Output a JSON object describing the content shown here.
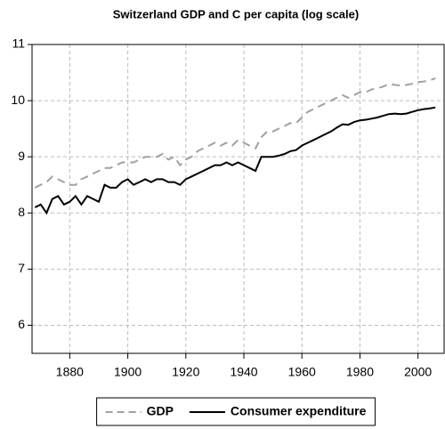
{
  "chart_data": {
    "type": "line",
    "title": "Switzerland GDP and C per capita (log scale)",
    "x": [
      1868,
      1870,
      1872,
      1874,
      1876,
      1878,
      1880,
      1882,
      1884,
      1886,
      1888,
      1890,
      1892,
      1894,
      1896,
      1898,
      1900,
      1902,
      1904,
      1906,
      1908,
      1910,
      1912,
      1914,
      1916,
      1918,
      1920,
      1922,
      1924,
      1926,
      1928,
      1930,
      1932,
      1934,
      1936,
      1938,
      1940,
      1942,
      1944,
      1946,
      1948,
      1950,
      1952,
      1954,
      1956,
      1958,
      1960,
      1962,
      1964,
      1966,
      1968,
      1970,
      1972,
      1974,
      1976,
      1978,
      1980,
      1982,
      1984,
      1986,
      1988,
      1990,
      1992,
      1994,
      1996,
      1998,
      2000,
      2002,
      2004,
      2006
    ],
    "series": [
      {
        "name": "GDP",
        "color": "#a0a0a0",
        "dash": "dashed",
        "values": [
          8.45,
          8.5,
          8.55,
          8.65,
          8.6,
          8.55,
          8.5,
          8.5,
          8.6,
          8.65,
          8.7,
          8.75,
          8.8,
          8.8,
          8.85,
          8.9,
          8.9,
          8.9,
          8.95,
          9.0,
          9.0,
          9.0,
          9.05,
          8.95,
          9.0,
          8.85,
          8.95,
          9.0,
          9.1,
          9.15,
          9.2,
          9.25,
          9.2,
          9.25,
          9.2,
          9.3,
          9.25,
          9.2,
          9.15,
          9.35,
          9.45,
          9.45,
          9.5,
          9.55,
          9.6,
          9.6,
          9.7,
          9.8,
          9.85,
          9.9,
          9.95,
          10.0,
          10.05,
          10.1,
          10.05,
          10.1,
          10.15,
          10.15,
          10.2,
          10.22,
          10.25,
          10.3,
          10.28,
          10.27,
          10.28,
          10.3,
          10.33,
          10.34,
          10.36,
          10.4
        ]
      },
      {
        "name": "Consumer expenditure",
        "color": "#000000",
        "dash": "solid",
        "values": [
          8.1,
          8.15,
          8.0,
          8.25,
          8.3,
          8.15,
          8.2,
          8.3,
          8.15,
          8.3,
          8.25,
          8.2,
          8.5,
          8.45,
          8.45,
          8.55,
          8.6,
          8.5,
          8.55,
          8.6,
          8.55,
          8.6,
          8.6,
          8.55,
          8.55,
          8.5,
          8.6,
          8.65,
          8.7,
          8.75,
          8.8,
          8.85,
          8.85,
          8.9,
          8.85,
          8.9,
          8.85,
          8.8,
          8.75,
          9.0,
          9.0,
          9.0,
          9.02,
          9.05,
          9.1,
          9.12,
          9.2,
          9.25,
          9.3,
          9.35,
          9.4,
          9.45,
          9.52,
          9.58,
          9.57,
          9.62,
          9.65,
          9.66,
          9.68,
          9.7,
          9.73,
          9.76,
          9.77,
          9.76,
          9.77,
          9.8,
          9.83,
          9.85,
          9.86,
          9.88
        ]
      }
    ],
    "xlim": [
      1867,
      2009
    ],
    "ylim": [
      5.5,
      11
    ],
    "xticks": [
      1880,
      1900,
      1920,
      1940,
      1960,
      1980,
      2000
    ],
    "yticks": [
      6,
      7,
      8,
      9,
      10,
      11
    ],
    "grid": true,
    "legend": "bottom"
  }
}
